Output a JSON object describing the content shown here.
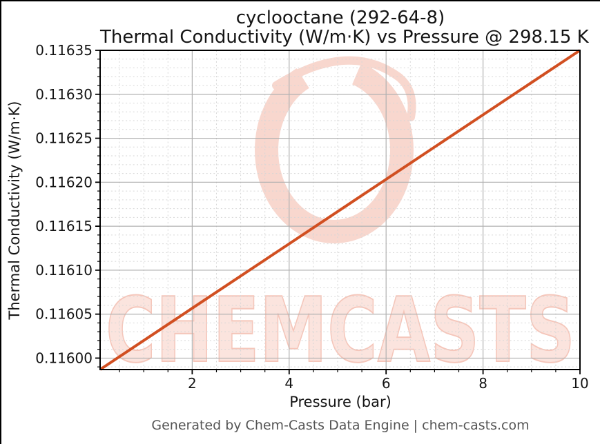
{
  "figure": {
    "background": "#ffffff",
    "border_color": "#000000"
  },
  "chart_data": {
    "type": "line",
    "title": "cyclooctane (292-64-8)",
    "subtitle": "Thermal Conductivity (W/m·K) vs Pressure @ 298.15 K",
    "xlabel": "Pressure (bar)",
    "ylabel": "Thermal Conductivity (W/m·K)",
    "xlim": [
      0.1,
      10
    ],
    "ylim": [
      0.115987,
      0.11635
    ],
    "xticks": [
      2,
      4,
      6,
      8,
      10
    ],
    "xtick_labels": [
      "2",
      "4",
      "6",
      "8",
      "10"
    ],
    "x_minor_step": 0.5,
    "yticks": [
      0.116,
      0.11605,
      0.1161,
      0.11615,
      0.1162,
      0.11625,
      0.1163,
      0.11635
    ],
    "ytick_labels": [
      "0.11600",
      "0.11605",
      "0.11610",
      "0.11615",
      "0.11620",
      "0.11625",
      "0.11630",
      "0.11635"
    ],
    "y_minor_step": 1e-05,
    "grid": true,
    "legend_position": "none",
    "series": [
      {
        "name": "thermal-conductivity-vs-pressure",
        "x": [
          0.1,
          2,
          4,
          6,
          8,
          10
        ],
        "y": [
          0.115987,
          0.1160567,
          0.11613,
          0.1162033,
          0.1162767,
          0.11635
        ],
        "color": "#d14f21",
        "line_width": 4
      }
    ]
  },
  "watermark": {
    "text": "CHEMCASTS",
    "ring_color": "#f8d7ce",
    "text_fill": "#fbe4de",
    "text_edge": "#f5c6ba"
  },
  "footer": {
    "text": "Generated by Chem-Casts Data Engine | chem-casts.com"
  },
  "colors": {
    "grid_major": "#b0b0b0",
    "grid_minor": "#d6d6d6",
    "axis": "#000000",
    "tick": "#000000",
    "text": "#141414",
    "footer_text": "#555555"
  }
}
